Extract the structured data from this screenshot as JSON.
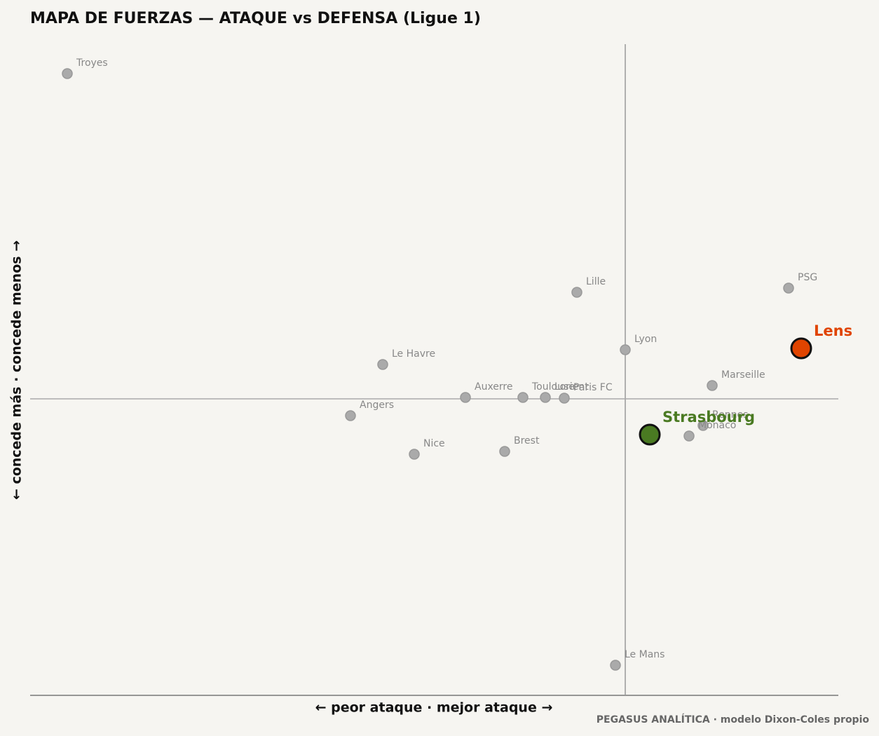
{
  "chart_data": {
    "type": "scatter",
    "title": "MAPA DE FUERZAS — ATAQUE vs DEFENSA (Ligue 1)",
    "x_label": "← peor ataque · mejor ataque →",
    "y_label": "← concede más · concede menos →",
    "footer": "PEGASUS ANALÍTICA · modelo Dixon-Coles propio",
    "color": "#aaaaaa",
    "xlim": [
      -1.698,
      0.608
    ],
    "ylim": [
      -0.846,
      1.012
    ],
    "xref": 0,
    "yref": 0,
    "points": [
      {
        "name": "Troyes",
        "x": -1.592,
        "y": 0.928
      },
      {
        "name": "Lille",
        "x": -0.138,
        "y": 0.304
      },
      {
        "name": "PSG",
        "x": 0.466,
        "y": 0.316
      },
      {
        "name": "Lyon",
        "x": 0.0,
        "y": 0.14
      },
      {
        "name": "Le Havre",
        "x": -0.692,
        "y": 0.098
      },
      {
        "name": "Marseille",
        "x": 0.248,
        "y": 0.038
      },
      {
        "name": "Auxerre",
        "x": -0.456,
        "y": 0.004
      },
      {
        "name": "Toulouse",
        "x": -0.292,
        "y": 0.004
      },
      {
        "name": "Lorient",
        "x": -0.228,
        "y": 0.004
      },
      {
        "name": "Paris FC",
        "x": -0.174,
        "y": 0.002
      },
      {
        "name": "Angers",
        "x": -0.784,
        "y": -0.048
      },
      {
        "name": "Rennes",
        "x": 0.222,
        "y": -0.076
      },
      {
        "name": "Monaco",
        "x": 0.182,
        "y": -0.106
      },
      {
        "name": "Nice",
        "x": -0.602,
        "y": -0.158
      },
      {
        "name": "Brest",
        "x": -0.344,
        "y": -0.15
      },
      {
        "name": "Le Mans",
        "x": -0.028,
        "y": -0.76
      },
      {
        "name": "Strasbourg",
        "x": 0.07,
        "y": -0.102,
        "color": "#4a7a22"
      },
      {
        "name": "Lens",
        "x": 0.502,
        "y": 0.144,
        "color": "#e04400"
      }
    ]
  }
}
